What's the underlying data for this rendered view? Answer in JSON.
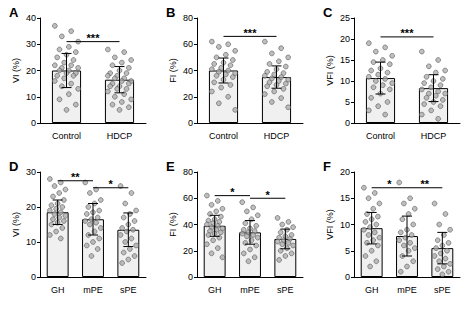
{
  "chart_data": [
    {
      "type": "bar",
      "title": "A",
      "y_label": "VI (%)",
      "categories": [
        "Control",
        "HDCP"
      ],
      "values": [
        20,
        16.5
      ],
      "error": [
        6.5,
        5
      ],
      "points": [
        [
          37,
          35,
          33,
          31,
          29,
          28,
          27,
          26,
          25,
          24,
          23,
          22,
          22,
          21,
          21,
          20,
          20,
          19,
          19,
          18,
          18,
          17,
          16,
          15,
          14,
          13,
          11,
          9,
          7,
          5
        ],
        [
          28,
          27,
          25,
          24,
          23,
          22,
          21,
          20,
          19,
          19,
          18,
          18,
          17,
          17,
          16,
          16,
          15,
          15,
          14,
          14,
          13,
          13,
          12,
          11,
          10,
          9,
          8,
          7,
          6,
          5
        ]
      ],
      "ylim": [
        0,
        40
      ],
      "yticks": [
        0,
        10,
        20,
        30,
        40
      ],
      "color": "#f0f0f0",
      "marker": "circle",
      "grid": false,
      "annotations": [
        {
          "from": 0,
          "to": 1,
          "y": 31,
          "text": "***"
        }
      ]
    },
    {
      "type": "bar",
      "title": "B",
      "y_label": "FI (%)",
      "categories": [
        "Control",
        "HDCP"
      ],
      "values": [
        40,
        35
      ],
      "error": [
        9.5,
        8.5
      ],
      "points": [
        [
          62,
          60,
          58,
          55,
          52,
          50,
          48,
          46,
          45,
          44,
          42,
          41,
          40,
          39,
          38,
          37,
          36,
          35,
          33,
          31,
          29,
          27,
          24,
          20,
          15,
          10
        ],
        [
          62,
          57,
          53,
          50,
          47,
          45,
          43,
          41,
          39,
          38,
          37,
          36,
          35,
          34,
          33,
          32,
          31,
          30,
          29,
          28,
          26,
          24,
          22,
          19,
          16,
          12
        ]
      ],
      "ylim": [
        0,
        80
      ],
      "yticks": [
        0,
        20,
        40,
        60,
        80
      ],
      "color": "#f0f0f0",
      "marker": "circle",
      "grid": false,
      "annotations": [
        {
          "from": 0,
          "to": 1,
          "y": 66,
          "text": "***"
        }
      ]
    },
    {
      "type": "bar",
      "title": "C",
      "y_label": "VFI (%)",
      "categories": [
        "Control",
        "HDCP"
      ],
      "values": [
        10.7,
        8.3
      ],
      "error": [
        3.8,
        3.2
      ],
      "points": [
        [
          19,
          18,
          17,
          16,
          15,
          14.5,
          14,
          13,
          12.5,
          12,
          11.5,
          11,
          10.5,
          10,
          9.5,
          9,
          8.5,
          8,
          7,
          6,
          5,
          4,
          3,
          2
        ],
        [
          17,
          15,
          13.5,
          12.5,
          12,
          11,
          10.5,
          10,
          9.5,
          9,
          8.5,
          8,
          7.5,
          7,
          7,
          6.5,
          6,
          5.5,
          5,
          4.5,
          4,
          3,
          2,
          1
        ]
      ],
      "ylim": [
        0,
        25
      ],
      "yticks": [
        0,
        5,
        10,
        15,
        20,
        25
      ],
      "color": "#f0f0f0",
      "marker": "circle",
      "grid": false,
      "annotations": [
        {
          "from": 0,
          "to": 1,
          "y": 20.5,
          "text": "***"
        }
      ]
    },
    {
      "type": "bar",
      "title": "D",
      "y_label": "VI (%)",
      "categories": [
        "GH",
        "mPE",
        "sPE"
      ],
      "values": [
        18.5,
        16.5,
        13.5
      ],
      "error": [
        3.5,
        4.5,
        4.8
      ],
      "points": [
        [
          28,
          27,
          26,
          25,
          24,
          23,
          22,
          21,
          20.5,
          20,
          19.5,
          19,
          18.5,
          18,
          17.5,
          17,
          16.5,
          16,
          15.5,
          15,
          14,
          13,
          12,
          11
        ],
        [
          27,
          25,
          24,
          22,
          21,
          20,
          19,
          18.5,
          18,
          17,
          16.5,
          16,
          15.5,
          15,
          14,
          13,
          12,
          11,
          10,
          9,
          8,
          6
        ],
        [
          26,
          24,
          21,
          19,
          18,
          17,
          16,
          15,
          14,
          13.5,
          13,
          12,
          11,
          10,
          9,
          8,
          7,
          6,
          5,
          4
        ]
      ],
      "ylim": [
        0,
        30
      ],
      "yticks": [
        0,
        10,
        20,
        30
      ],
      "color": "#f0f0f0",
      "marker": "circle",
      "grid": false,
      "annotations": [
        {
          "from": 0,
          "to": 1,
          "y": 27.5,
          "text": "**"
        },
        {
          "from": 1,
          "to": 2,
          "y": 25.5,
          "text": "*"
        }
      ]
    },
    {
      "type": "bar",
      "title": "E",
      "y_label": "FI (%)",
      "categories": [
        "GH",
        "mPE",
        "sPE"
      ],
      "values": [
        39,
        34,
        29
      ],
      "error": [
        8,
        9,
        7.5
      ],
      "points": [
        [
          62,
          58,
          55,
          52,
          50,
          48,
          46,
          44,
          43,
          42,
          41,
          40,
          39,
          38,
          37,
          36,
          35,
          34,
          33,
          32,
          30,
          28,
          25,
          22,
          18,
          15
        ],
        [
          57,
          53,
          50,
          47,
          44,
          41,
          39,
          37,
          36,
          35,
          34,
          33,
          32,
          31,
          30,
          28,
          26,
          24,
          21,
          18,
          15,
          12
        ],
        [
          45,
          42,
          40,
          38,
          36,
          34,
          32,
          31,
          30,
          29,
          28,
          27,
          26,
          25,
          24,
          22,
          20,
          18,
          16,
          13
        ]
      ],
      "ylim": [
        0,
        80
      ],
      "yticks": [
        0,
        20,
        40,
        60,
        80
      ],
      "color": "#f0f0f0",
      "marker": "circle",
      "grid": false,
      "annotations": [
        {
          "from": 0,
          "to": 1,
          "y": 62,
          "text": "*"
        },
        {
          "from": 1,
          "to": 2,
          "y": 60,
          "text": "*"
        }
      ]
    },
    {
      "type": "bar",
      "title": "F",
      "y_label": "VFI (%)",
      "categories": [
        "GH",
        "mPE",
        "sPE"
      ],
      "values": [
        9.3,
        7.8,
        5.5
      ],
      "error": [
        3,
        3.8,
        3
      ],
      "points": [
        [
          17,
          16,
          15,
          14,
          13,
          12,
          11.5,
          11,
          10.5,
          10,
          9.5,
          9,
          8.5,
          8,
          7.5,
          7,
          6.5,
          6,
          5,
          4,
          3,
          2
        ],
        [
          18,
          15,
          14,
          13,
          12,
          11,
          10,
          9,
          8.5,
          8,
          7.5,
          7,
          6.5,
          6,
          5.5,
          5,
          4,
          3,
          2,
          1
        ],
        [
          14,
          12,
          10,
          9,
          8,
          7,
          6.5,
          6,
          5.5,
          5,
          4.5,
          4,
          3.5,
          3,
          2.5,
          2,
          1.5,
          1,
          0.5
        ]
      ],
      "ylim": [
        0,
        20
      ],
      "yticks": [
        0,
        5,
        10,
        15,
        20
      ],
      "color": "#f0f0f0",
      "marker": "circle",
      "grid": false,
      "annotations": [
        {
          "from": 0,
          "to": 1,
          "y": 17,
          "text": "*"
        },
        {
          "from": 1,
          "to": 2,
          "y": 17,
          "text": "**"
        }
      ]
    }
  ]
}
